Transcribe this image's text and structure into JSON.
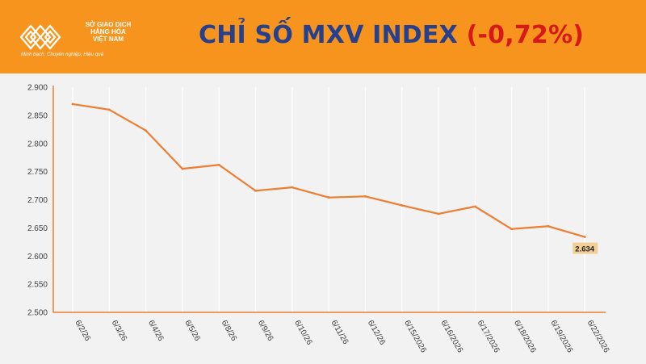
{
  "header": {
    "logo": {
      "line1": "SỞ GIAO DỊCH",
      "line2": "HÀNG HÓA",
      "line3": "VIỆT NAM",
      "tagline": "Minh bạch, Chuyên nghiệp, Hiệu quả"
    },
    "title": "CHỈ SỐ MXV INDEX",
    "change": "(-0,72%)"
  },
  "colors": {
    "header_bg": "#f7941d",
    "title": "#24408e",
    "change": "#d7191c",
    "line": "#ed7d31",
    "plot_bg": "#f2f2f2",
    "label_bg": "#f4cf94"
  },
  "chart_data": {
    "type": "line",
    "categories": [
      "6/2/26",
      "6/3/26",
      "6/4/26",
      "6/5/26",
      "6/8/26",
      "6/9/26",
      "6/10/26",
      "6/11/26",
      "6/12/26",
      "6/15/2026",
      "6/16/2026",
      "6/17/2026",
      "6/18/2026",
      "6/19/2026",
      "6/22/2026"
    ],
    "series": [
      {
        "values": [
          2870,
          2860,
          2823,
          2755,
          2762,
          2716,
          2722,
          2704,
          2706,
          2690,
          2675,
          2688,
          2648,
          2653,
          2634
        ]
      }
    ],
    "yticks": [
      "2.900",
      "2.850",
      "2.800",
      "2.750",
      "2.700",
      "2.650",
      "2.600",
      "2.550",
      "2.500"
    ],
    "ylim": [
      2500,
      2900
    ],
    "grid": "vertical",
    "last_value_label": "2.634"
  }
}
